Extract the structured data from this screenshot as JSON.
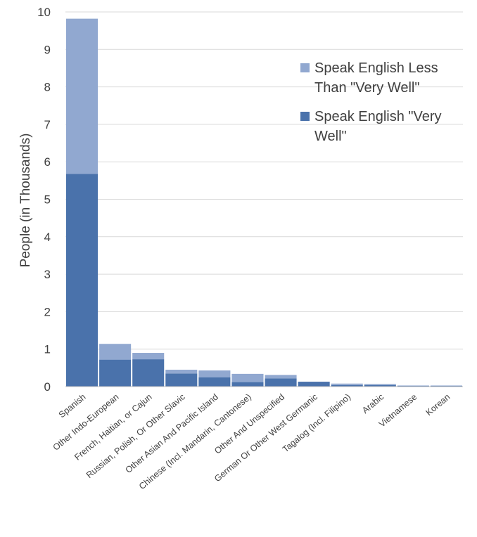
{
  "chart_data": {
    "type": "bar",
    "stacked": true,
    "ylabel": "People (in Thousands)",
    "xlabel": "",
    "ylim": [
      0,
      10
    ],
    "yticks": [
      "0",
      "1",
      "2",
      "3",
      "4",
      "5",
      "6",
      "7",
      "8",
      "9",
      "10"
    ],
    "grid": true,
    "legend_position": "right",
    "categories": [
      "Spanish",
      "Other Indo-European",
      "French, Haitian, or Cajun",
      "Russian, Polish, Or Other Slavic",
      "Other Asian And Pacific Island",
      "Chinese (Incl. Mandarin, Cantonese)",
      "Other And Unspecified",
      "German Or Other West Germanic",
      "Tagalog (Incl. Filipino)",
      "Arabic",
      "Vietnamese",
      "Korean"
    ],
    "series": [
      {
        "name": "Speak English \"Very Well\"",
        "legend_lines": [
          "Speak English \"Very",
          "Well\""
        ],
        "color": "#4a72ab",
        "values": [
          5.68,
          0.72,
          0.73,
          0.35,
          0.25,
          0.12,
          0.22,
          0.13,
          0.04,
          0.04,
          0.02,
          0.02
        ]
      },
      {
        "name": "Speak English Less Than \"Very Well\"",
        "legend_lines": [
          "Speak English Less",
          "Than \"Very Well\""
        ],
        "color": "#91a8d0",
        "values": [
          4.14,
          0.42,
          0.17,
          0.1,
          0.18,
          0.22,
          0.09,
          0.0,
          0.04,
          0.03,
          0.01,
          0.01
        ]
      }
    ]
  }
}
